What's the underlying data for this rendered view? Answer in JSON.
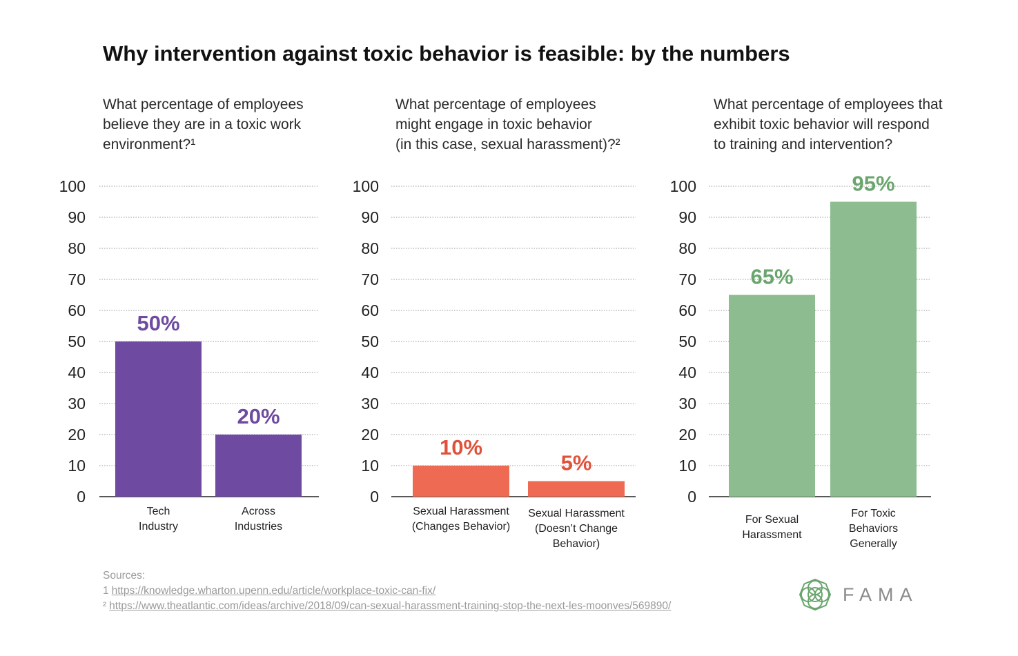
{
  "title": "Why intervention against toxic behavior is feasible: by the numbers",
  "chart_data": [
    {
      "type": "bar",
      "question": [
        "What percentage of employees",
        "believe they are in a toxic work",
        "environment?¹"
      ],
      "categories": [
        [
          "Tech",
          "Industry"
        ],
        [
          "Across",
          "Industries"
        ]
      ],
      "values": [
        50,
        20
      ],
      "value_labels": [
        "50%",
        "20%"
      ],
      "ylim": [
        0,
        100
      ],
      "yticks": [
        "0",
        "10",
        "20",
        "30",
        "40",
        "50",
        "60",
        "70",
        "80",
        "90",
        "100"
      ],
      "grid": true,
      "color": "#6e4aa0"
    },
    {
      "type": "bar",
      "question": [
        "What percentage of employees",
        "might engage in toxic behavior",
        "(in this case, sexual harassment)?²"
      ],
      "categories": [
        [
          "Sexual Harassment",
          "(Changes Behavior)"
        ],
        [
          "Sexual Harassment",
          "(Doesn’t Change",
          "Behavior)"
        ]
      ],
      "values": [
        10,
        5
      ],
      "value_labels": [
        "10%",
        "5%"
      ],
      "ylim": [
        0,
        100
      ],
      "yticks": [
        "0",
        "10",
        "20",
        "30",
        "40",
        "50",
        "60",
        "70",
        "80",
        "90",
        "100"
      ],
      "grid": true,
      "color": "#ee6a52",
      "label_color": "#e0513a"
    },
    {
      "type": "bar",
      "question": [
        "What percentage of employees that",
        "exhibit toxic behavior will respond",
        "to training and intervention?"
      ],
      "categories": [
        [
          "For Sexual",
          "Harassment"
        ],
        [
          "For Toxic",
          "Behaviors",
          "Generally"
        ]
      ],
      "values": [
        65,
        95
      ],
      "value_labels": [
        "65%",
        "95%"
      ],
      "ylim": [
        0,
        100
      ],
      "yticks": [
        "0",
        "10",
        "20",
        "30",
        "40",
        "50",
        "60",
        "70",
        "80",
        "90",
        "100"
      ],
      "grid": true,
      "color": "#8cbc8f",
      "label_color": "#6aa56d"
    }
  ],
  "sources": {
    "label": "Sources:",
    "items": [
      {
        "num": "1",
        "url": "https://knowledge.wharton.upenn.edu/article/workplace-toxic-can-fix/"
      },
      {
        "num": "²",
        "url": "https://www.theatlantic.com/ideas/archive/2018/09/can-sexual-harassment-training-stop-the-next-les-moonves/569890/"
      }
    ]
  },
  "logo": {
    "text": "FAMA",
    "icon": "fama-flower-icon",
    "color": "#6aa56d"
  }
}
